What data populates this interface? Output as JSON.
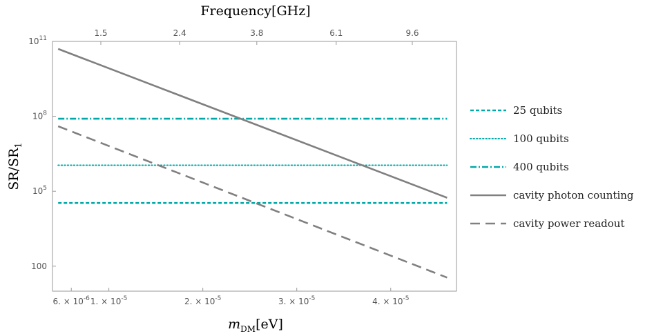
{
  "chart_data": {
    "type": "line",
    "title": "",
    "top_axis_label": "Frequency[GHz]",
    "xlabel_main": "m",
    "xlabel_sub": "DM",
    "xlabel_unit": "[eV]",
    "ylabel_main": "SR/SR",
    "ylabel_sub": "1",
    "x_scale": "linear",
    "y_scale": "log",
    "xlim": [
      4e-06,
      4.7e-05
    ],
    "ylim": [
      10,
      100000000000.0
    ],
    "x_ticks": [
      {
        "value": 6e-06,
        "mant": "6.",
        "exp": "-6"
      },
      {
        "value": 1e-05,
        "mant": "1.",
        "exp": "-5"
      },
      {
        "value": 2e-05,
        "mant": "2.",
        "exp": "-5"
      },
      {
        "value": 3e-05,
        "mant": "3.",
        "exp": "-5"
      },
      {
        "value": 4e-05,
        "mant": "4.",
        "exp": "-5"
      }
    ],
    "top_ticks": [
      {
        "value": 1.5,
        "label": "1.5"
      },
      {
        "value": 2.4,
        "label": "2.4"
      },
      {
        "value": 3.8,
        "label": "3.8"
      },
      {
        "value": 6.1,
        "label": "6.1"
      },
      {
        "value": 9.6,
        "label": "9.6"
      }
    ],
    "y_ticks": [
      {
        "value": 100,
        "mant": "100",
        "exp": ""
      },
      {
        "value": 100000.0,
        "mant": "10",
        "exp": "5"
      },
      {
        "value": 100000000.0,
        "mant": "10",
        "exp": "8"
      },
      {
        "value": 100000000000.0,
        "mant": "10",
        "exp": "11"
      }
    ],
    "series": [
      {
        "name": "25 qubits",
        "style": "dashed-short",
        "color": "#00a8a8",
        "x": [
          4.6e-06,
          4.6e-05
        ],
        "y": [
          34000.0,
          34000.0
        ]
      },
      {
        "name": "100 qubits",
        "style": "dotted",
        "color": "#00a8a8",
        "x": [
          4.6e-06,
          4.6e-05
        ],
        "y": [
          1100000.0,
          1100000.0
        ]
      },
      {
        "name": "400 qubits",
        "style": "dash-dot",
        "color": "#00a8a8",
        "x": [
          4.6e-06,
          4.6e-05
        ],
        "y": [
          80000000.0,
          80000000.0
        ]
      },
      {
        "name": "cavity photon counting",
        "style": "solid",
        "color": "#808080",
        "x": [
          4.6e-06,
          4.6e-05
        ],
        "y": [
          50000000000.0,
          55000.0
        ]
      },
      {
        "name": "cavity power readout",
        "style": "dashed-long",
        "color": "#808080",
        "x": [
          4.6e-06,
          4.6e-05
        ],
        "y": [
          40000000.0,
          35.0
        ]
      }
    ],
    "legend_position": "right"
  }
}
